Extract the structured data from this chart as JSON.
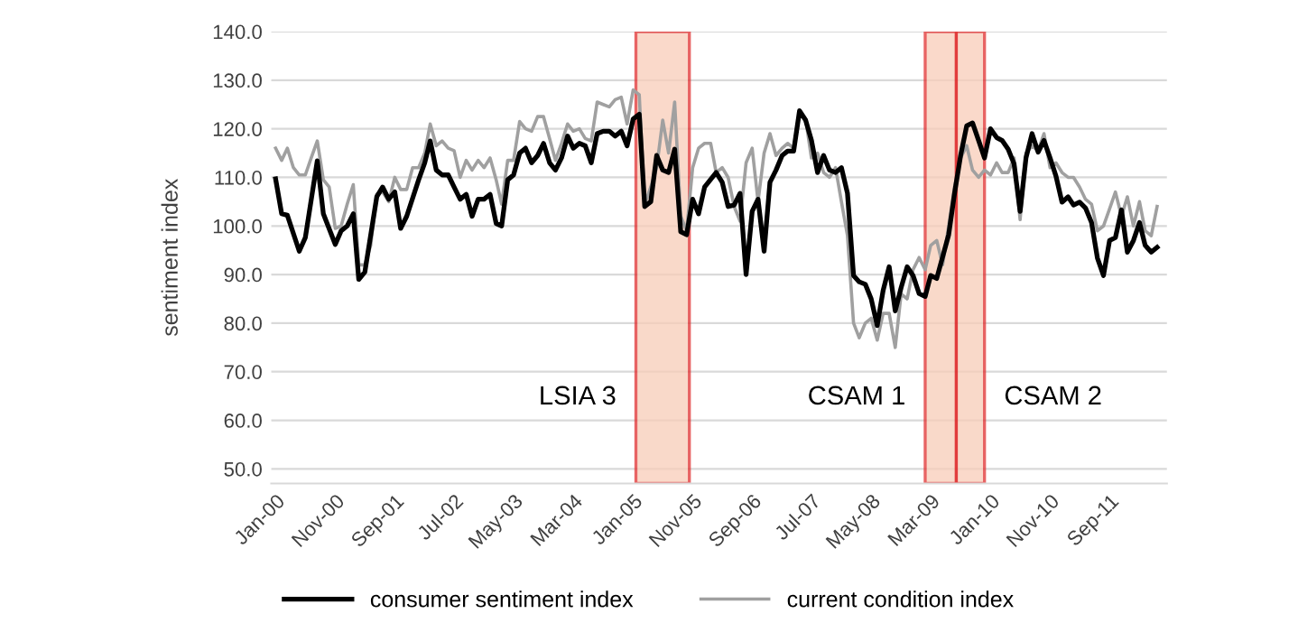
{
  "chart_data": {
    "type": "line",
    "ylabel": "sentiment index",
    "xlim": [
      "1999-12-10",
      "2012-06-20"
    ],
    "xticks": [
      {
        "value": "2000-01",
        "label": "Jan-00"
      },
      {
        "value": "2000-11",
        "label": "Nov-00"
      },
      {
        "value": "2001-09",
        "label": "Sep-01"
      },
      {
        "value": "2002-07",
        "label": "Jul-02"
      },
      {
        "value": "2003-05",
        "label": "May-03"
      },
      {
        "value": "2004-03",
        "label": "Mar-04"
      },
      {
        "value": "2005-01",
        "label": "Jan-05"
      },
      {
        "value": "2005-11",
        "label": "Nov-05"
      },
      {
        "value": "2006-09",
        "label": "Sep-06"
      },
      {
        "value": "2007-07",
        "label": "Jul-07"
      },
      {
        "value": "2008-05",
        "label": "May-08"
      },
      {
        "value": "2009-03",
        "label": "Mar-09"
      },
      {
        "value": "2010-01",
        "label": "Jan-10"
      },
      {
        "value": "2010-11",
        "label": "Nov-10"
      },
      {
        "value": "2011-09",
        "label": "Sep-11"
      }
    ],
    "ylim": [
      47,
      140
    ],
    "yticks": [
      {
        "value": 50,
        "label": "50.0"
      },
      {
        "value": 60,
        "label": "60.0"
      },
      {
        "value": 70,
        "label": "70.0"
      },
      {
        "value": 80,
        "label": "80.0"
      },
      {
        "value": 90,
        "label": "90.0"
      },
      {
        "value": 100,
        "label": "100.0"
      },
      {
        "value": 110,
        "label": "110.0"
      },
      {
        "value": 120,
        "label": "120.0"
      },
      {
        "value": 130,
        "label": "130.0"
      },
      {
        "value": 140,
        "label": "140.0"
      }
    ],
    "grid": "y",
    "legend": "bottom",
    "marker": "none",
    "line_style": "solid",
    "bands": [
      {
        "axis": "x",
        "from": "2005-01-15",
        "to": "2005-10-15",
        "color": "#f8cdb8",
        "label": "LSIA 3"
      },
      {
        "axis": "x",
        "from": "2009-02-01",
        "to": "2009-07-10",
        "color": "#f8cdb8",
        "label": "CSAM 1"
      },
      {
        "axis": "x",
        "from": "2009-07-10",
        "to": "2009-12-01",
        "color": "#f8cdb8",
        "label": "CSAM 2"
      }
    ],
    "series": [
      {
        "name": "consumer sentiment index",
        "color": "#000000",
        "x": [
          "2000-01",
          "2000-02",
          "2000-03",
          "2000-05",
          "2000-06",
          "2000-08",
          "2000-09",
          "2000-11",
          "2000-12",
          "2001-01",
          "2001-02",
          "2001-03",
          "2001-04",
          "2001-06",
          "2001-07",
          "2001-08",
          "2001-09",
          "2001-10",
          "2001-11",
          "2002-01",
          "2002-02",
          "2002-03",
          "2002-04",
          "2002-05",
          "2002-06",
          "2002-07",
          "2002-08",
          "2002-09",
          "2002-10",
          "2002-11",
          "2002-12",
          "2003-01",
          "2003-02",
          "2003-03",
          "2003-04",
          "2003-05",
          "2003-06",
          "2003-07",
          "2003-08",
          "2003-09",
          "2003-10",
          "2003-11",
          "2003-12",
          "2004-01",
          "2004-02",
          "2004-03",
          "2004-04",
          "2004-05",
          "2004-06",
          "2004-07",
          "2004-08",
          "2004-09",
          "2004-10",
          "2004-11",
          "2004-12",
          "2005-01",
          "2005-02",
          "2005-03",
          "2005-04",
          "2005-05",
          "2005-06",
          "2005-07",
          "2005-08",
          "2005-09",
          "2005-10",
          "2005-11",
          "2005-12",
          "2006-01",
          "2006-03",
          "2006-04",
          "2006-05",
          "2006-06",
          "2006-07",
          "2006-08",
          "2006-09",
          "2006-10",
          "2006-11",
          "2006-12",
          "2007-01",
          "2007-02",
          "2007-03",
          "2007-04",
          "2007-05",
          "2007-06",
          "2007-07",
          "2007-08",
          "2007-09",
          "2007-10",
          "2007-11",
          "2007-12",
          "2008-01",
          "2008-02",
          "2008-03",
          "2008-04",
          "2008-05",
          "2008-06",
          "2008-07",
          "2008-08",
          "2008-09",
          "2008-10",
          "2008-11",
          "2008-12",
          "2009-01",
          "2009-02",
          "2009-03",
          "2009-04",
          "2009-06",
          "2009-07",
          "2009-08",
          "2009-09",
          "2009-10",
          "2009-11",
          "2009-12",
          "2010-01",
          "2010-02",
          "2010-03",
          "2010-04",
          "2010-05",
          "2010-06",
          "2010-07",
          "2010-08",
          "2010-09",
          "2010-10",
          "2010-11",
          "2010-12",
          "2011-01",
          "2011-02",
          "2011-03",
          "2011-04",
          "2011-05",
          "2011-06",
          "2011-07",
          "2011-08",
          "2011-09",
          "2011-10",
          "2011-11",
          "2011-12",
          "2012-01",
          "2012-02",
          "2012-03",
          "2012-04",
          "2012-05"
        ],
        "values": [
          109.7,
          102.5,
          102.2,
          94.8,
          97.6,
          113.4,
          102.5,
          96.2,
          99,
          100,
          102.5,
          89,
          90.5,
          106,
          108,
          105.5,
          107,
          99.5,
          102,
          109.5,
          113,
          117.5,
          111.5,
          110.5,
          110.5,
          108,
          105.5,
          106.5,
          102,
          105.5,
          105.5,
          106.5,
          100.5,
          100,
          109.5,
          110.5,
          115,
          116,
          113,
          114.5,
          117,
          113,
          111.5,
          114,
          118.5,
          116,
          117,
          116.5,
          113,
          119,
          119.5,
          119.5,
          118.5,
          119.5,
          116.5,
          122,
          123,
          104,
          105,
          114.5,
          111.5,
          111,
          115.8,
          98.8,
          98.2,
          105.5,
          102.5,
          108,
          111,
          109,
          104,
          104.3,
          106.7,
          90,
          103,
          105.5,
          94.8,
          109,
          111.5,
          114.5,
          115.4,
          115.4,
          123.7,
          121.8,
          117.6,
          111,
          114.5,
          111.5,
          111,
          112,
          106.7,
          89.8,
          88.5,
          88,
          85,
          79.5,
          86.7,
          91.6,
          82.5,
          87.3,
          91.6,
          89.8,
          86.1,
          85.5,
          89.8,
          89.2,
          98.2,
          106.7,
          114.5,
          120.6,
          121.2,
          117.6,
          114,
          120,
          118.2,
          117.6,
          115.8,
          112.8,
          103,
          114,
          119,
          115.2,
          117.6,
          114,
          110.3,
          104.9,
          106,
          104.3,
          104.9,
          103.7,
          100.7,
          93.4,
          89.8,
          97,
          97.6,
          103.3,
          94.6,
          97,
          100.7,
          96,
          94.6,
          95.6
        ]
      },
      {
        "name": "current condition index",
        "color": "#a0a0a0",
        "x": [
          "2000-01",
          "2000-02",
          "2000-03",
          "2000-04",
          "2000-05",
          "2000-06",
          "2000-07",
          "2000-08",
          "2000-09",
          "2000-10",
          "2000-11",
          "2000-12",
          "2001-01",
          "2001-02",
          "2001-03",
          "2001-04",
          "2001-05",
          "2001-06",
          "2001-07",
          "2001-08",
          "2001-09",
          "2001-10",
          "2001-11",
          "2001-12",
          "2002-01",
          "2002-02",
          "2002-03",
          "2002-04",
          "2002-05",
          "2002-06",
          "2002-07",
          "2002-08",
          "2002-09",
          "2002-10",
          "2002-11",
          "2002-12",
          "2003-01",
          "2003-02",
          "2003-03",
          "2003-04",
          "2003-05",
          "2003-06",
          "2003-07",
          "2003-08",
          "2003-09",
          "2003-10",
          "2003-11",
          "2003-12",
          "2004-01",
          "2004-02",
          "2004-03",
          "2004-04",
          "2004-05",
          "2004-06",
          "2004-07",
          "2004-08",
          "2004-09",
          "2004-10",
          "2004-11",
          "2004-12",
          "2005-01",
          "2005-02",
          "2005-03",
          "2005-04",
          "2005-05",
          "2005-06",
          "2005-07",
          "2005-08",
          "2005-09",
          "2005-10",
          "2005-11",
          "2005-12",
          "2006-01",
          "2006-02",
          "2006-03",
          "2006-04",
          "2006-05",
          "2006-06",
          "2006-07",
          "2006-08",
          "2006-09",
          "2006-10",
          "2006-11",
          "2006-12",
          "2007-01",
          "2007-02",
          "2007-03",
          "2007-04",
          "2007-05",
          "2007-06",
          "2007-07",
          "2007-08",
          "2007-09",
          "2007-10",
          "2007-11",
          "2007-12",
          "2008-01",
          "2008-02",
          "2008-03",
          "2008-04",
          "2008-05",
          "2008-06",
          "2008-07",
          "2008-08",
          "2008-09",
          "2008-10",
          "2008-11",
          "2008-12",
          "2009-01",
          "2009-02",
          "2009-03",
          "2009-04",
          "2009-05",
          "2009-06",
          "2009-07",
          "2009-08",
          "2009-09",
          "2009-10",
          "2009-11",
          "2009-12",
          "2010-01",
          "2010-02",
          "2010-03",
          "2010-04",
          "2010-05",
          "2010-06",
          "2010-07",
          "2010-08",
          "2010-09",
          "2010-10",
          "2010-11",
          "2010-12",
          "2011-01",
          "2011-02",
          "2011-03",
          "2011-04",
          "2011-05",
          "2011-06",
          "2011-07",
          "2011-08",
          "2011-09",
          "2011-10",
          "2011-11",
          "2011-12",
          "2012-01",
          "2012-02",
          "2012-03",
          "2012-04",
          "2012-05"
        ],
        "values": [
          116,
          113.5,
          116,
          112,
          110.5,
          110.5,
          114,
          117.5,
          109.5,
          108,
          99.5,
          100,
          104.5,
          108.5,
          92,
          92,
          96,
          106.5,
          107,
          105,
          110,
          107.5,
          107.5,
          112,
          112,
          115,
          121,
          116.5,
          117.5,
          116,
          115.5,
          110,
          113.5,
          111.5,
          113.5,
          112,
          114,
          109.5,
          104.5,
          113.5,
          113.5,
          121.5,
          120,
          119.5,
          122.5,
          122.5,
          118,
          113.5,
          117,
          121,
          119.5,
          120,
          118,
          117.5,
          125.5,
          125,
          124.5,
          126,
          126.5,
          121,
          128,
          127,
          104.5,
          108,
          112,
          121.8,
          115,
          125.5,
          102,
          99,
          112,
          116,
          117,
          117,
          111,
          112,
          110,
          104,
          101,
          113,
          116,
          105,
          115,
          119,
          114.5,
          116,
          117,
          116,
          123.5,
          122,
          114,
          115,
          111,
          110,
          112,
          105,
          98,
          80,
          77,
          80,
          81,
          76.5,
          82,
          82,
          75,
          86,
          85,
          91,
          93.5,
          91,
          96,
          97,
          92,
          100,
          108,
          114,
          116.5,
          111.5,
          110,
          111.5,
          110.5,
          113,
          111,
          111,
          114,
          101.3,
          115,
          116.5,
          115.5,
          119,
          112,
          113,
          111,
          110,
          110,
          108,
          105.5,
          104.5,
          99,
          100,
          103.5,
          107,
          102,
          106,
          100,
          105,
          99,
          98,
          104
        ]
      }
    ]
  }
}
